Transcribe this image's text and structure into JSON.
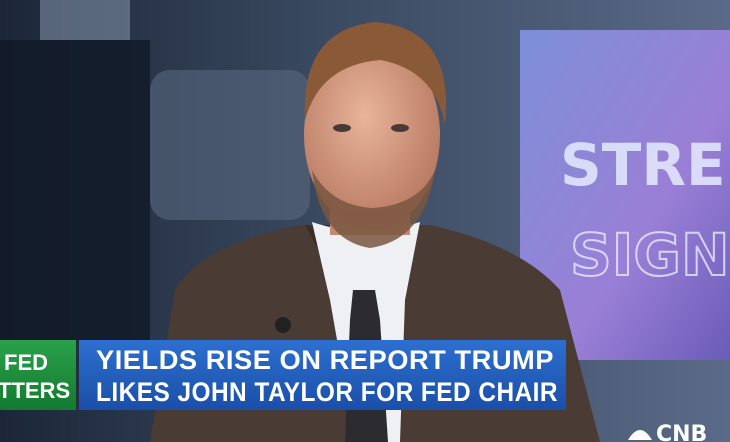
{
  "background_screen": {
    "line1": "STRE",
    "line2": "SIGN"
  },
  "lower_third": {
    "tag_line1": "FED",
    "tag_line2": "TTERS",
    "headline_line1": "YIELDS RISE ON REPORT TRUMP",
    "headline_line2": "LIKES JOHN TAYLOR FOR FED CHAIR"
  },
  "logo": "CNB"
}
